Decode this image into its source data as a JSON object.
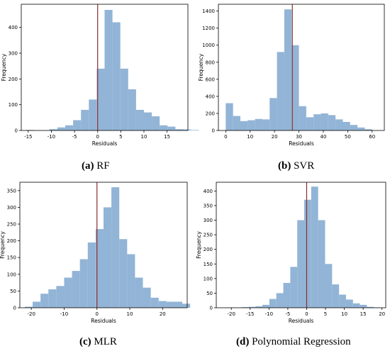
{
  "panels": [
    {
      "caption_letter": "(a)",
      "caption_text": " RF",
      "chart_data": {
        "type": "bar",
        "xlabel": "Residuals",
        "ylabel": "Frequency",
        "xlim": [
          -16.5,
          19.5
        ],
        "ylim": [
          0,
          490
        ],
        "xticks": [
          -15,
          -10,
          -5,
          0,
          5,
          10,
          15
        ],
        "yticks": [
          0,
          100,
          200,
          300,
          400
        ],
        "bin_start": -15.5,
        "bin_width": 1.7,
        "values": [
          2,
          1,
          0,
          5,
          12,
          20,
          40,
          80,
          120,
          240,
          468,
          420,
          240,
          160,
          80,
          70,
          55,
          20,
          15,
          5,
          4,
          2
        ],
        "vline": 0,
        "bar_color": "#92b4d6",
        "vline_color": "#8b2e2e"
      }
    },
    {
      "caption_letter": "(b)",
      "caption_text": " SVR",
      "chart_data": {
        "type": "bar",
        "xlabel": "Residuals",
        "ylabel": "Frequency",
        "xlim": [
          -3,
          65
        ],
        "ylim": [
          0,
          1480
        ],
        "xticks": [
          0,
          10,
          20,
          30,
          40,
          50,
          60
        ],
        "yticks": [
          0,
          200,
          400,
          600,
          800,
          1000,
          1200,
          1400
        ],
        "bin_start": 0,
        "bin_width": 3,
        "values": [
          320,
          170,
          110,
          120,
          135,
          130,
          380,
          920,
          1420,
          1000,
          285,
          155,
          190,
          200,
          180,
          130,
          100,
          65,
          35,
          15
        ],
        "vline": 27.3,
        "bar_color": "#92b4d6",
        "vline_color": "#8b2e2e"
      }
    },
    {
      "caption_letter": "(c)",
      "caption_text": " MLR",
      "chart_data": {
        "type": "bar",
        "xlabel": "Residuals",
        "ylabel": "Frequency",
        "xlim": [
          -23.5,
          27.5
        ],
        "ylim": [
          0,
          375
        ],
        "xticks": [
          -20,
          -10,
          0,
          10,
          20
        ],
        "yticks": [
          0,
          50,
          100,
          150,
          200,
          250,
          300,
          350
        ],
        "bin_start": -22,
        "bin_width": 2.4,
        "values": [
          3,
          18,
          42,
          55,
          65,
          90,
          110,
          145,
          195,
          235,
          300,
          360,
          205,
          160,
          90,
          60,
          30,
          20,
          18,
          18,
          12
        ],
        "vline": 0,
        "bar_color": "#92b4d6",
        "vline_color": "#8b2e2e"
      }
    },
    {
      "caption_letter": "(d)",
      "caption_text": " Polynomial Regression",
      "chart_data": {
        "type": "bar",
        "xlabel": "Residuals",
        "ylabel": "Frequency",
        "xlim": [
          -24,
          21
        ],
        "ylim": [
          0,
          430
        ],
        "xticks": [
          -20,
          -15,
          -10,
          -5,
          0,
          5,
          10,
          15,
          20
        ],
        "yticks": [
          0,
          50,
          100,
          150,
          200,
          250,
          300,
          350,
          400
        ],
        "bin_start": -21,
        "bin_width": 1.85,
        "values": [
          1,
          0,
          2,
          3,
          5,
          10,
          30,
          50,
          85,
          140,
          300,
          370,
          415,
          300,
          150,
          80,
          45,
          28,
          15,
          10,
          3,
          1
        ],
        "vline": 0,
        "bar_color": "#92b4d6",
        "vline_color": "#8b2e2e"
      }
    }
  ]
}
